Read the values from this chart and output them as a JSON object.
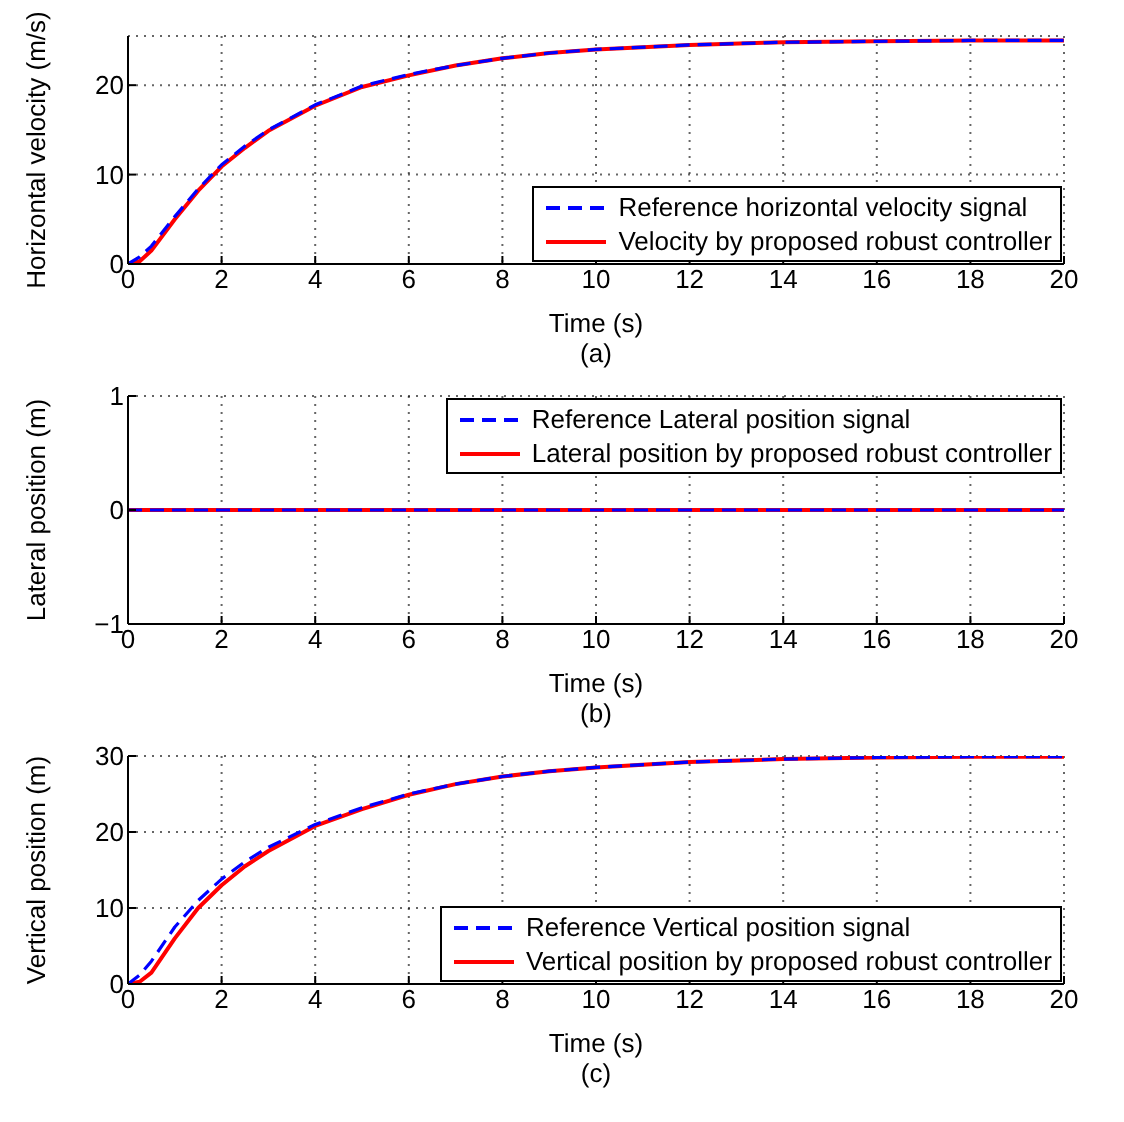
{
  "chart_data": [
    {
      "type": "line",
      "xlabel": "Time (s)",
      "ylabel": "Horizontal velocity (m/s)",
      "annotations": [
        "(a)"
      ],
      "xlim": [
        0,
        20
      ],
      "xticks": [
        0,
        2,
        4,
        6,
        8,
        10,
        12,
        14,
        16,
        18,
        20
      ],
      "ylim": [
        0,
        25.5
      ],
      "yticks": [
        0,
        10,
        20
      ],
      "grid": true,
      "legend": "bottom right",
      "series": [
        {
          "name": "Reference horizontal velocity signal",
          "color": "#0000ff",
          "line_style": "dashed",
          "x": [
            0,
            0.25,
            0.5,
            1,
            1.5,
            2,
            2.5,
            3,
            4,
            5,
            6,
            7,
            8,
            9,
            10,
            12,
            14,
            16,
            18,
            20
          ],
          "values": [
            0,
            0.8,
            2,
            5.3,
            8.4,
            11.1,
            13.2,
            15,
            17.8,
            19.9,
            21.2,
            22.2,
            23,
            23.6,
            24,
            24.5,
            24.8,
            24.9,
            25,
            25
          ]
        },
        {
          "name": "Velocity by proposed robust controller",
          "color": "#ff0000",
          "line_style": "solid",
          "x": [
            0,
            0.25,
            0.5,
            1,
            1.5,
            2,
            2.5,
            3,
            4,
            5,
            6,
            7,
            8,
            9,
            10,
            12,
            14,
            16,
            18,
            20
          ],
          "values": [
            0,
            0.3,
            1.5,
            5,
            8.2,
            10.9,
            13,
            14.9,
            17.7,
            19.8,
            21.1,
            22.2,
            23,
            23.6,
            24,
            24.5,
            24.8,
            24.9,
            25,
            25
          ]
        }
      ]
    },
    {
      "type": "line",
      "xlabel": "Time (s)",
      "ylabel": "Lateral position (m)",
      "annotations": [
        "(b)"
      ],
      "xlim": [
        0,
        20
      ],
      "xticks": [
        0,
        2,
        4,
        6,
        8,
        10,
        12,
        14,
        16,
        18,
        20
      ],
      "ylim": [
        -1,
        1
      ],
      "yticks": [
        -1,
        0,
        1
      ],
      "grid": true,
      "legend": "top right",
      "series": [
        {
          "name": "Reference Lateral position signal",
          "color": "#0000ff",
          "line_style": "dashed",
          "x": [
            0,
            20
          ],
          "values": [
            0,
            0
          ]
        },
        {
          "name": "Lateral position by proposed robust controller",
          "color": "#ff0000",
          "line_style": "solid",
          "x": [
            0,
            2,
            4,
            6,
            8,
            10,
            12,
            14,
            16,
            18,
            20
          ],
          "values": [
            0,
            0,
            0,
            0,
            0,
            0,
            0,
            0,
            0,
            0,
            0
          ]
        }
      ]
    },
    {
      "type": "line",
      "xlabel": "Time (s)",
      "ylabel": "Vertical position (m)",
      "annotations": [
        "(c)"
      ],
      "xlim": [
        0,
        20
      ],
      "xticks": [
        0,
        2,
        4,
        6,
        8,
        10,
        12,
        14,
        16,
        18,
        20
      ],
      "ylim": [
        0,
        30
      ],
      "yticks": [
        0,
        10,
        20,
        30
      ],
      "grid": true,
      "legend": "bottom right",
      "series": [
        {
          "name": "Reference Vertical position signal",
          "color": "#0000ff",
          "line_style": "dashed",
          "x": [
            0,
            0.25,
            0.5,
            1,
            1.5,
            2,
            2.5,
            3,
            4,
            5,
            6,
            7,
            8,
            9,
            10,
            12,
            14,
            16,
            18,
            20
          ],
          "values": [
            0,
            1.2,
            3,
            7.5,
            11,
            13.8,
            16.1,
            18,
            21,
            23.2,
            25,
            26.3,
            27.3,
            28,
            28.5,
            29.2,
            29.6,
            29.8,
            29.9,
            29.9
          ]
        },
        {
          "name": "Vertical position by proposed robust controller",
          "color": "#ff0000",
          "line_style": "solid",
          "x": [
            0,
            0.25,
            0.5,
            1,
            1.5,
            2,
            2.5,
            3,
            4,
            5,
            6,
            7,
            8,
            9,
            10,
            12,
            14,
            16,
            18,
            20
          ],
          "values": [
            0,
            0.3,
            1.5,
            6,
            10,
            13,
            15.5,
            17.5,
            20.8,
            23,
            24.9,
            26.3,
            27.3,
            28,
            28.5,
            29.2,
            29.6,
            29.8,
            29.9,
            29.9
          ]
        }
      ]
    }
  ]
}
